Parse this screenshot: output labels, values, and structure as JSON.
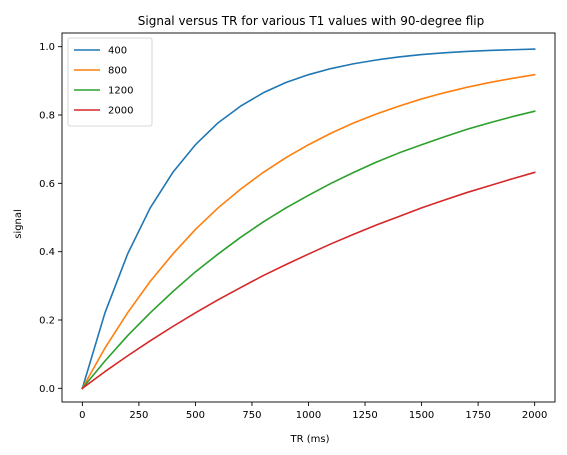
{
  "chart_data": {
    "type": "line",
    "title": "Signal versus TR for various T1 values with 90-degree flip",
    "xlabel": "TR (ms)",
    "ylabel": "signal",
    "xlim": [
      -90,
      2090
    ],
    "ylim": [
      -0.04,
      1.04
    ],
    "x_ticks": [
      0,
      250,
      500,
      750,
      1000,
      1250,
      1500,
      1750,
      2000
    ],
    "y_ticks": [
      0.0,
      0.2,
      0.4,
      0.6,
      0.8,
      1.0
    ],
    "x_tick_labels": [
      "0",
      "250",
      "500",
      "750",
      "1000",
      "1250",
      "1500",
      "1750",
      "2000"
    ],
    "y_tick_labels": [
      "0.0",
      "0.2",
      "0.4",
      "0.6",
      "0.8",
      "1.0"
    ],
    "grid": false,
    "legend_position": "top-left",
    "x": [
      0,
      100,
      200,
      300,
      400,
      500,
      600,
      700,
      800,
      900,
      1000,
      1100,
      1200,
      1300,
      1400,
      1500,
      1600,
      1700,
      1800,
      1900,
      2000
    ],
    "series": [
      {
        "name": "400",
        "color": "#1f77b4",
        "values": [
          0.0,
          0.221,
          0.393,
          0.528,
          0.632,
          0.713,
          0.777,
          0.826,
          0.865,
          0.895,
          0.918,
          0.936,
          0.95,
          0.961,
          0.97,
          0.977,
          0.982,
          0.986,
          0.989,
          0.991,
          0.993
        ]
      },
      {
        "name": "800",
        "color": "#ff7f0e",
        "values": [
          0.0,
          0.118,
          0.221,
          0.313,
          0.393,
          0.465,
          0.528,
          0.583,
          0.632,
          0.675,
          0.713,
          0.747,
          0.777,
          0.803,
          0.826,
          0.847,
          0.865,
          0.881,
          0.895,
          0.907,
          0.918
        ]
      },
      {
        "name": "1200",
        "color": "#2ca02c",
        "values": [
          0.0,
          0.08,
          0.154,
          0.221,
          0.283,
          0.341,
          0.393,
          0.442,
          0.487,
          0.528,
          0.565,
          0.6,
          0.632,
          0.662,
          0.689,
          0.713,
          0.736,
          0.758,
          0.777,
          0.795,
          0.811
        ]
      },
      {
        "name": "2000",
        "color": "#d62728",
        "values": [
          0.0,
          0.049,
          0.095,
          0.139,
          0.181,
          0.221,
          0.259,
          0.295,
          0.33,
          0.362,
          0.393,
          0.423,
          0.451,
          0.478,
          0.503,
          0.528,
          0.551,
          0.573,
          0.593,
          0.613,
          0.632
        ]
      }
    ]
  }
}
